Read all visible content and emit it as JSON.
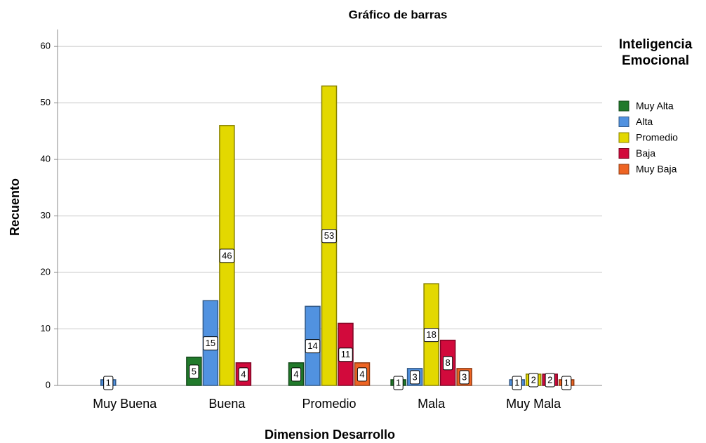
{
  "chart_data": {
    "type": "bar",
    "title": "Gráfico de barras",
    "x_label": "Dimension Desarrollo",
    "y_label": "Recuento",
    "legend_title": "Inteligencia Emocional",
    "legend_position": "right",
    "grid": true,
    "categories": [
      "Muy Buena",
      "Buena",
      "Promedio",
      "Mala",
      "Muy Mala"
    ],
    "series": [
      {
        "name": "Muy Alta",
        "color": "#217a2b",
        "values": [
          null,
          5,
          4,
          1,
          null
        ]
      },
      {
        "name": "Alta",
        "color": "#5192e0",
        "values": [
          1,
          15,
          14,
          3,
          1
        ]
      },
      {
        "name": "Promedio",
        "color": "#e3d800",
        "values": [
          null,
          46,
          53,
          18,
          2
        ]
      },
      {
        "name": "Baja",
        "color": "#d20a3c",
        "values": [
          null,
          4,
          11,
          8,
          2
        ]
      },
      {
        "name": "Muy Baja",
        "color": "#ee6423",
        "values": [
          null,
          null,
          4,
          3,
          1
        ]
      }
    ],
    "ylim": [
      0,
      63
    ],
    "yticks": [
      0,
      10,
      20,
      30,
      40,
      50,
      60
    ]
  }
}
